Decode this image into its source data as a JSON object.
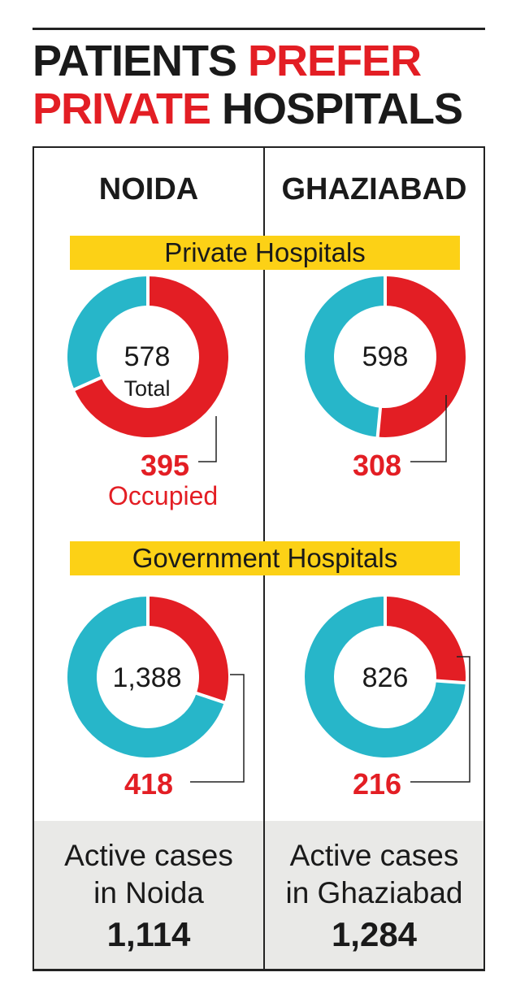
{
  "title": {
    "line1_a": "PATIENTS",
    "line1_b": "PREFER",
    "line2_a": "PRIVATE",
    "line2_b": "HOSPITALS"
  },
  "colors": {
    "occupied": "#e31e24",
    "vacant": "#27b6c9",
    "band": "#fcd116",
    "footer_bg": "#e9e9e7"
  },
  "columns": [
    {
      "label": "NOIDA"
    },
    {
      "label": "GHAZIABAD"
    }
  ],
  "sections": {
    "private": "Private Hospitals",
    "government": "Government Hospitals"
  },
  "labels": {
    "total": "Total",
    "occupied": "Occupied"
  },
  "chart_data": [
    {
      "type": "pie",
      "city": "NOIDA",
      "section": "Private Hospitals",
      "total": 578,
      "occupied": 395,
      "total_label": "578",
      "occupied_label": "395"
    },
    {
      "type": "pie",
      "city": "GHAZIABAD",
      "section": "Private Hospitals",
      "total": 598,
      "occupied": 308,
      "total_label": "598",
      "occupied_label": "308"
    },
    {
      "type": "pie",
      "city": "NOIDA",
      "section": "Government Hospitals",
      "total": 1388,
      "occupied": 418,
      "total_label": "1,388",
      "occupied_label": "418"
    },
    {
      "type": "pie",
      "city": "GHAZIABAD",
      "section": "Government Hospitals",
      "total": 826,
      "occupied": 216,
      "total_label": "826",
      "occupied_label": "216"
    }
  ],
  "footer": [
    {
      "line1": "Active cases",
      "line2": "in Noida",
      "value": "1,114"
    },
    {
      "line1": "Active cases",
      "line2": "in Ghaziabad",
      "value": "1,284"
    }
  ]
}
